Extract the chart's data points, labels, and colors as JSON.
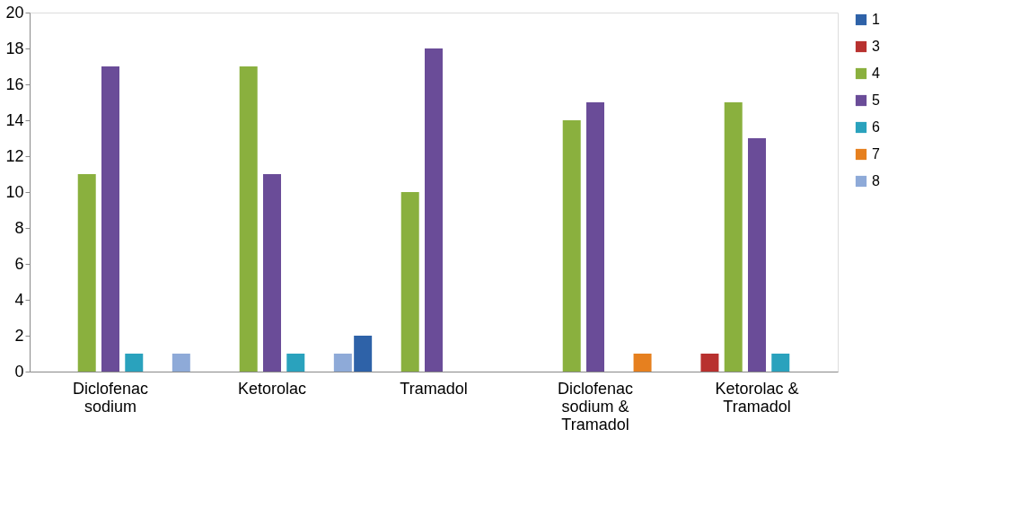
{
  "chart_data": {
    "type": "bar",
    "categories": [
      "Diclofenac sodium",
      "Ketorolac",
      "Tramadol",
      "Diclofenac sodium & Tramadol",
      "Ketorolac & Tramadol"
    ],
    "series": [
      {
        "name": "1",
        "color": "#2e62a8",
        "values": [
          null,
          null,
          2,
          null,
          null
        ]
      },
      {
        "name": "3",
        "color": "#b8312f",
        "values": [
          null,
          null,
          null,
          null,
          1
        ]
      },
      {
        "name": "4",
        "color": "#8ab03e",
        "values": [
          11,
          17,
          10,
          14,
          15
        ]
      },
      {
        "name": "5",
        "color": "#6a4c98",
        "values": [
          17,
          11,
          18,
          15,
          13
        ]
      },
      {
        "name": "6",
        "color": "#2aa2bd",
        "values": [
          1,
          1,
          null,
          null,
          1
        ]
      },
      {
        "name": "7",
        "color": "#e6801f",
        "values": [
          null,
          null,
          null,
          1,
          null
        ]
      },
      {
        "name": "8",
        "color": "#8eaad8",
        "values": [
          1,
          1,
          null,
          null,
          null
        ]
      }
    ],
    "ylim": [
      0,
      20
    ],
    "yticks": [
      0,
      2,
      4,
      6,
      8,
      10,
      12,
      14,
      16,
      18,
      20
    ],
    "grid": false,
    "legend": "right"
  }
}
